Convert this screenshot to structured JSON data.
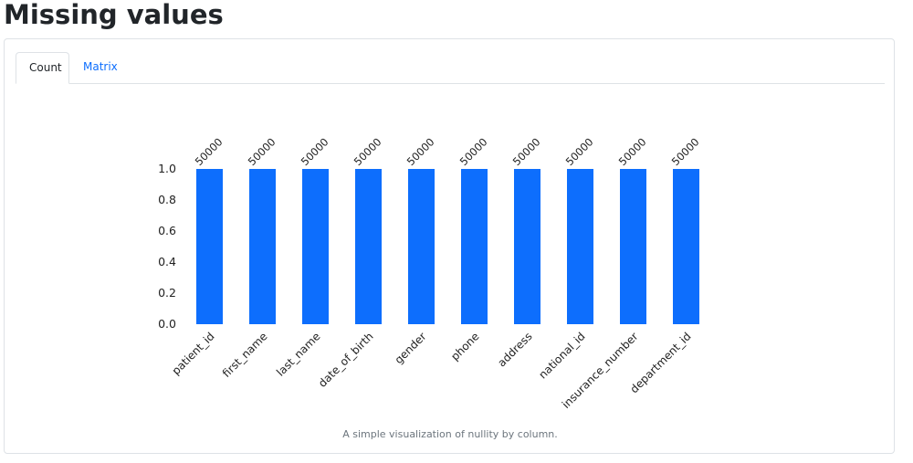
{
  "page": {
    "title": "Missing values"
  },
  "tabs": [
    {
      "label": "Count",
      "active": true
    },
    {
      "label": "Matrix",
      "active": false
    }
  ],
  "caption": "A simple visualization of nullity by column.",
  "chart_data": {
    "type": "bar",
    "categories": [
      "patient_id",
      "first_name",
      "last_name",
      "date_of_birth",
      "gender",
      "phone",
      "address",
      "national_id",
      "insurance_number",
      "department_id"
    ],
    "values": [
      1.0,
      1.0,
      1.0,
      1.0,
      1.0,
      1.0,
      1.0,
      1.0,
      1.0,
      1.0
    ],
    "counts": [
      "50000",
      "50000",
      "50000",
      "50000",
      "50000",
      "50000",
      "50000",
      "50000",
      "50000",
      "50000"
    ],
    "yticks": [
      "0.0",
      "0.2",
      "0.4",
      "0.6",
      "0.8",
      "1.0"
    ],
    "ylim": [
      0,
      1
    ],
    "bar_color": "#0d6efd",
    "grid": false,
    "title": "",
    "xlabel": "",
    "ylabel": ""
  }
}
